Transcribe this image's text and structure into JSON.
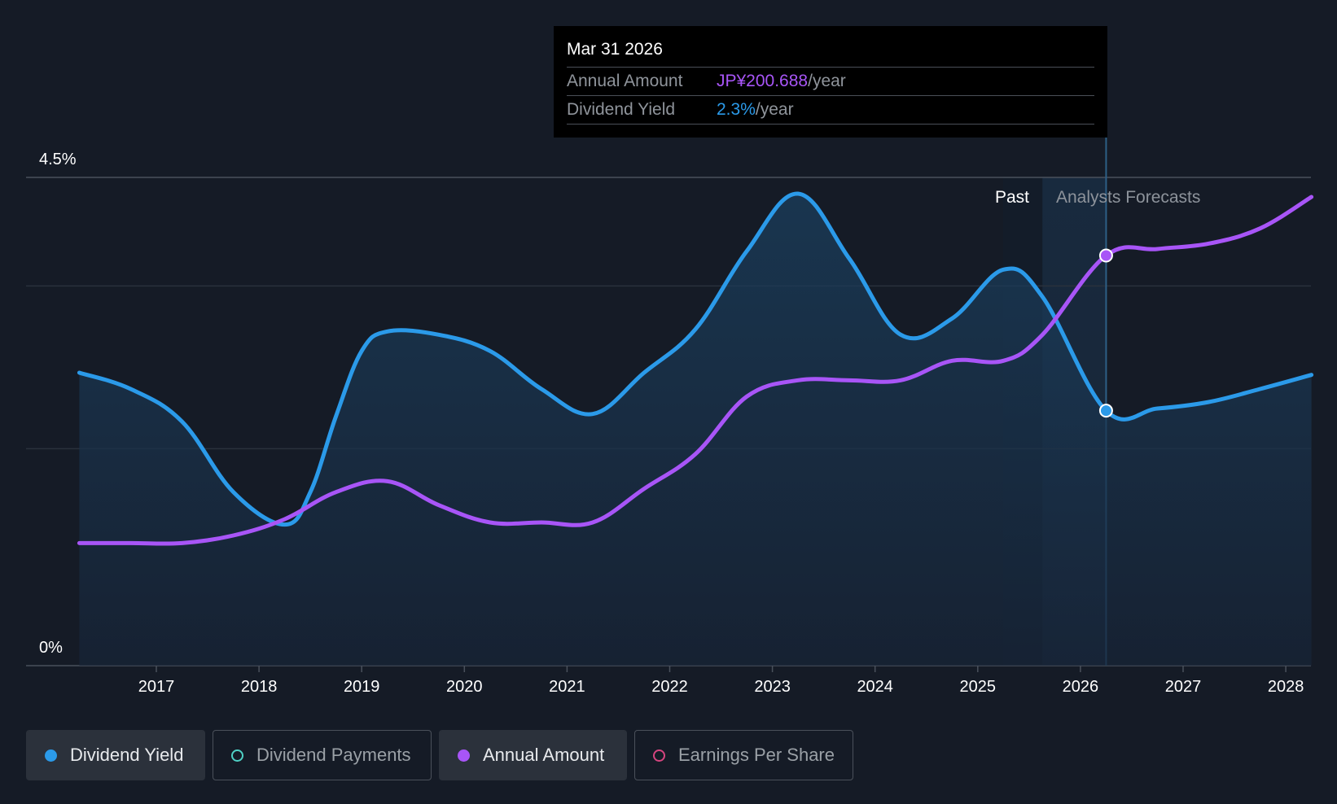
{
  "tooltip": {
    "date": "Mar 31 2026",
    "rows": [
      {
        "label": "Annual Amount",
        "value": "JP¥200.688",
        "unit": "/year",
        "color": "#a855f7"
      },
      {
        "label": "Dividend Yield",
        "value": "2.3%",
        "unit": "/year",
        "color": "#2b9ae9"
      }
    ]
  },
  "legend": [
    {
      "label": "Dividend Yield",
      "color": "#2b9ae9",
      "active": true,
      "filled": true
    },
    {
      "label": "Dividend Payments",
      "color": "#4fd1c5",
      "active": false,
      "filled": false
    },
    {
      "label": "Annual Amount",
      "color": "#a855f7",
      "active": true,
      "filled": true
    },
    {
      "label": "Earnings Per Share",
      "color": "#d6457f",
      "active": false,
      "filled": false
    }
  ],
  "chart_data": {
    "type": "line",
    "y_axis_labels": [
      "4.5%",
      "0%"
    ],
    "ylim": [
      0,
      4.5
    ],
    "xlim": [
      2016.23,
      2028.25
    ],
    "x_ticks": [
      2017,
      2018,
      2019,
      2020,
      2021,
      2022,
      2023,
      2024,
      2025,
      2026,
      2027,
      2028
    ],
    "past_label": "Past",
    "forecast_label": "Analysts Forecasts",
    "forecast_start": 2025.63,
    "selected_x": 2026.25,
    "series": [
      {
        "name": "Dividend Yield",
        "color": "#2b9ae9",
        "fill": true,
        "x": [
          2016.25,
          2016.75,
          2017.25,
          2017.75,
          2018.25,
          2018.5,
          2018.75,
          2019.0,
          2019.25,
          2019.75,
          2020.25,
          2020.75,
          2021.25,
          2021.75,
          2022.25,
          2022.75,
          2023.25,
          2023.75,
          2024.25,
          2024.75,
          2025.25,
          2025.63,
          2026.25,
          2026.75,
          2027.25,
          2027.75,
          2028.25
        ],
        "values": [
          2.7,
          2.55,
          2.25,
          1.6,
          1.3,
          1.6,
          2.3,
          2.9,
          3.08,
          3.05,
          2.9,
          2.55,
          2.32,
          2.7,
          3.1,
          3.82,
          4.35,
          3.75,
          3.05,
          3.2,
          3.65,
          3.4,
          2.35,
          2.37,
          2.43,
          2.55,
          2.68
        ]
      },
      {
        "name": "Annual Amount",
        "color": "#a855f7",
        "fill": false,
        "x": [
          2016.25,
          2016.75,
          2017.25,
          2017.75,
          2018.25,
          2018.75,
          2019.25,
          2019.75,
          2020.25,
          2020.75,
          2021.25,
          2021.75,
          2022.25,
          2022.75,
          2023.25,
          2023.75,
          2024.25,
          2024.75,
          2025.25,
          2025.63,
          2026.25,
          2026.75,
          2027.25,
          2027.75,
          2028.25
        ],
        "values": [
          1.13,
          1.13,
          1.13,
          1.2,
          1.35,
          1.6,
          1.7,
          1.48,
          1.32,
          1.32,
          1.32,
          1.63,
          1.95,
          2.48,
          2.63,
          2.63,
          2.63,
          2.81,
          2.81,
          3.05,
          3.78,
          3.84,
          3.89,
          4.03,
          4.32
        ]
      }
    ]
  }
}
